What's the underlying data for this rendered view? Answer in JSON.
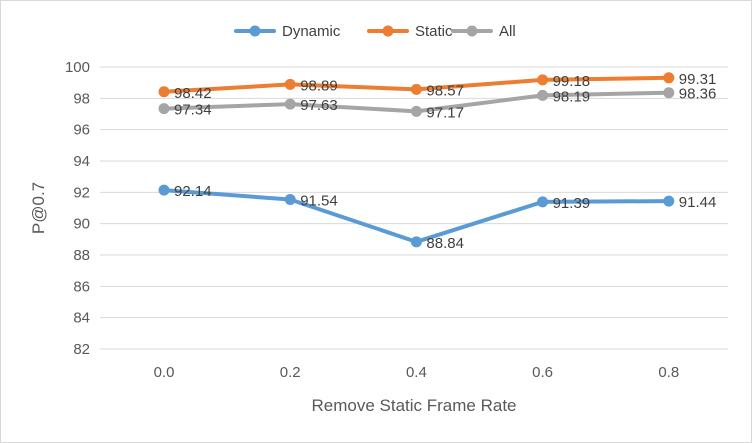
{
  "chart_data": {
    "type": "line",
    "title": "",
    "xlabel": "Remove Static Frame Rate",
    "ylabel": "P@0.7",
    "ylim": [
      82,
      100
    ],
    "yticks": [
      82,
      84,
      86,
      88,
      90,
      92,
      94,
      96,
      98,
      100
    ],
    "categories": [
      "0.0",
      "0.2",
      "0.4",
      "0.6",
      "0.8"
    ],
    "grid": "horizontal",
    "legend_position": "top",
    "series": [
      {
        "name": "Dynamic",
        "color": "#5b9bd5",
        "values": [
          92.14,
          91.54,
          88.84,
          91.39,
          91.44
        ],
        "labels": [
          "92.14",
          "91.54",
          "88.84",
          "91.39",
          "91.44"
        ]
      },
      {
        "name": "Static",
        "color": "#ed7d31",
        "values": [
          98.42,
          98.89,
          98.57,
          99.18,
          99.31
        ],
        "labels": [
          "98.42",
          "98.89",
          "98.57",
          "99.18",
          "99.31"
        ]
      },
      {
        "name": "All",
        "color": "#a5a5a5",
        "values": [
          97.34,
          97.63,
          97.17,
          98.19,
          98.36
        ],
        "labels": [
          "97.34",
          "97.63",
          "97.17",
          "98.19",
          "98.36"
        ]
      }
    ]
  }
}
